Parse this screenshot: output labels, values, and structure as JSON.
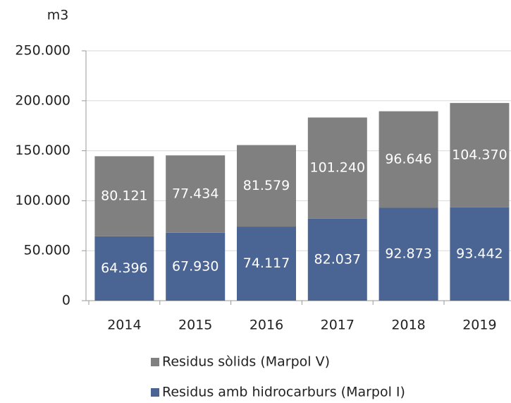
{
  "chart_data": {
    "type": "stacked_bar",
    "y_axis_label": "m3",
    "categories": [
      "2014",
      "2015",
      "2016",
      "2017",
      "2018",
      "2019"
    ],
    "series": [
      {
        "name": "Residus amb hidrocarburs (Marpol I)",
        "color": "#4a6594",
        "values": [
          64396,
          67930,
          74117,
          82037,
          92873,
          93442
        ],
        "value_labels": [
          "64.396",
          "67.930",
          "74.117",
          "82.037",
          "92.873",
          "93.442"
        ]
      },
      {
        "name": "Residus sòlids (Marpol V)",
        "color": "#808080",
        "values": [
          80121,
          77434,
          81579,
          101240,
          96646,
          104370
        ],
        "value_labels": [
          "80.121",
          "77.434",
          "81.579",
          "101.240",
          "96.646",
          "104.370"
        ]
      }
    ],
    "ylim": [
      0,
      250000
    ],
    "yticks": [
      0,
      {
        "value": 50000,
        "label": "50.000"
      },
      {
        "value": 100000,
        "label": "100.000"
      },
      {
        "value": 150000,
        "label": "150.000"
      },
      {
        "value": 200000,
        "label": "200.000"
      },
      {
        "value": 250000,
        "label": "250.000"
      }
    ],
    "grid": true
  }
}
